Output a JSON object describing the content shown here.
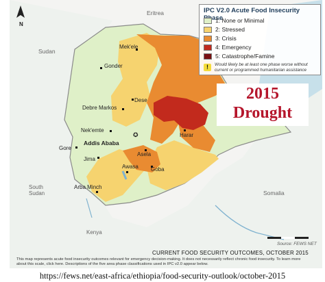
{
  "legend": {
    "title": "IPC V2.0 Acute Food Insecurity Phase",
    "phases": [
      {
        "label": "1: None or Minimal",
        "color": "#dff0c8"
      },
      {
        "label": "2: Stressed",
        "color": "#f6d36f"
      },
      {
        "label": "3: Crisis",
        "color": "#e98b31"
      },
      {
        "label": "4: Emergency",
        "color": "#c22a1d"
      },
      {
        "label": "5: Catastrophe/Famine",
        "color": "#7a0f0f"
      }
    ],
    "note": "Would likely be at least one phase worse without current or programmed humanitarian assistance"
  },
  "headline": {
    "year": "2015",
    "word": "Drought"
  },
  "countries": {
    "eritrea": "Eritrea",
    "sudan": "Sudan",
    "south_sudan": "South Sudan",
    "somalia": "Somalia",
    "kenya": "Kenya"
  },
  "cities": {
    "mekele": "Mek'ele",
    "gonder": "Gonder",
    "dese": "Dese",
    "debre_markos": "Debre Markos",
    "nekemte": "Nek'emte",
    "addis": "Addis Ababa",
    "gore": "Gore",
    "jima": "Jima",
    "asela": "Asela",
    "harar": "Harar",
    "awasa": "Awasa",
    "goba": "Goba",
    "arba_minch": "Arba Minch"
  },
  "source": "Source: FEWS NET",
  "caption": {
    "title": "CURRENT FOOD SECURITY OUTCOMES, OCTOBER 2015",
    "desc": "This map represents acute food insecurity outcomes relevant for emergency decision-making. It does not necessarily reflect chronic food insecurity. To learn more about this scale, click here. Descriptions of the five area phase classifications used in IPC v2.0 appear below."
  },
  "url": "https://fews.net/east-africa/ethiopia/food-security-outlook/october-2015",
  "colors": {
    "water": "#c7e0ea",
    "neighbor": "#f0f0ee",
    "border": "#9a9a9a"
  }
}
